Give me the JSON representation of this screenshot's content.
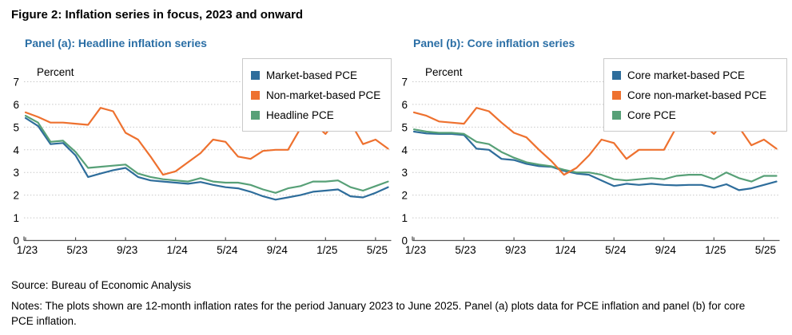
{
  "figure_title": "Figure 2: Inflation series in focus, 2023 and onward",
  "source": "Source: Bureau of Economic Analysis",
  "notes": "Notes: The plots shown are 12-month inflation rates for the period January 2023 to June 2025. Panel (a) plots data for PCE inflation and panel (b) for core PCE inflation.",
  "colors": {
    "blue": "#2e6d9b",
    "orange": "#ee712f",
    "green": "#57a077",
    "panel_title": "#2a6ea5",
    "gridline": "#c8c8c8",
    "axis": "#555555",
    "text": "#000000"
  },
  "chart_data": [
    {
      "type": "line",
      "panel_title": "Panel (a): Headline inflation series",
      "ylabel": "Percent",
      "ylim": [
        0,
        7
      ],
      "ytick_labels": [
        "0",
        "1",
        "2",
        "3",
        "4",
        "5",
        "6",
        "7"
      ],
      "grid": "dotted-horizontal",
      "legend_position": "top-right",
      "x_months": 30,
      "x_tick_labels": [
        "1/23",
        "5/23",
        "9/23",
        "1/24",
        "5/24",
        "9/24",
        "1/25",
        "5/25"
      ],
      "x_tick_month_index": [
        0,
        4,
        8,
        12,
        16,
        20,
        24,
        28
      ],
      "series": [
        {
          "name": "Market-based PCE",
          "color_key": "blue",
          "values": [
            5.4,
            5.05,
            4.25,
            4.3,
            3.75,
            2.8,
            2.95,
            3.1,
            3.2,
            2.8,
            2.65,
            2.6,
            2.55,
            2.5,
            2.58,
            2.45,
            2.35,
            2.3,
            2.15,
            1.95,
            1.8,
            1.9,
            2.0,
            2.15,
            2.2,
            2.25,
            1.95,
            1.9,
            2.1,
            2.35
          ]
        },
        {
          "name": "Non-market-based PCE",
          "color_key": "orange",
          "values": [
            5.65,
            5.45,
            5.2,
            5.2,
            5.15,
            5.1,
            5.85,
            5.7,
            4.75,
            4.45,
            3.7,
            2.9,
            3.05,
            3.45,
            3.85,
            4.45,
            4.35,
            3.7,
            3.6,
            3.95,
            4.0,
            4.0,
            4.95,
            5.2,
            4.7,
            5.4,
            5.2,
            4.25,
            4.45,
            4.05
          ]
        },
        {
          "name": "Headline PCE",
          "color_key": "green",
          "values": [
            5.5,
            5.2,
            4.35,
            4.4,
            3.9,
            3.2,
            3.25,
            3.3,
            3.35,
            2.95,
            2.8,
            2.7,
            2.65,
            2.6,
            2.75,
            2.6,
            2.55,
            2.55,
            2.45,
            2.25,
            2.1,
            2.3,
            2.4,
            2.6,
            2.6,
            2.65,
            2.35,
            2.2,
            2.4,
            2.6
          ]
        }
      ]
    },
    {
      "type": "line",
      "panel_title": "Panel (b): Core inflation series",
      "ylabel": "Percent",
      "ylim": [
        0,
        7
      ],
      "ytick_labels": [
        "0",
        "1",
        "2",
        "3",
        "4",
        "5",
        "6",
        "7"
      ],
      "grid": "dotted-horizontal",
      "legend_position": "top-right",
      "x_months": 30,
      "x_tick_labels": [
        "1/23",
        "5/23",
        "9/23",
        "1/24",
        "5/24",
        "9/24",
        "1/25",
        "5/25"
      ],
      "x_tick_month_index": [
        0,
        4,
        8,
        12,
        16,
        20,
        24,
        28
      ],
      "series": [
        {
          "name": "Core market-based PCE",
          "color_key": "blue",
          "values": [
            4.8,
            4.72,
            4.7,
            4.7,
            4.65,
            4.05,
            4.0,
            3.6,
            3.55,
            3.38,
            3.28,
            3.25,
            3.07,
            2.95,
            2.9,
            2.65,
            2.4,
            2.5,
            2.45,
            2.5,
            2.45,
            2.43,
            2.45,
            2.45,
            2.33,
            2.48,
            2.22,
            2.3,
            2.45,
            2.6
          ]
        },
        {
          "name": "Core non-market-based PCE",
          "color_key": "orange",
          "values": [
            5.65,
            5.5,
            5.25,
            5.2,
            5.15,
            5.85,
            5.7,
            5.2,
            4.75,
            4.55,
            4.0,
            3.5,
            2.9,
            3.2,
            3.75,
            4.45,
            4.3,
            3.6,
            4.0,
            4.0,
            4.0,
            5.0,
            5.1,
            5.2,
            4.7,
            5.4,
            5.0,
            4.2,
            4.45,
            4.05
          ]
        },
        {
          "name": "Core PCE",
          "color_key": "green",
          "values": [
            4.9,
            4.8,
            4.75,
            4.75,
            4.7,
            4.35,
            4.25,
            3.9,
            3.65,
            3.45,
            3.35,
            3.27,
            3.12,
            3.0,
            3.0,
            2.9,
            2.7,
            2.65,
            2.7,
            2.75,
            2.7,
            2.85,
            2.9,
            2.9,
            2.7,
            3.0,
            2.75,
            2.6,
            2.85,
            2.85
          ]
        }
      ]
    }
  ]
}
